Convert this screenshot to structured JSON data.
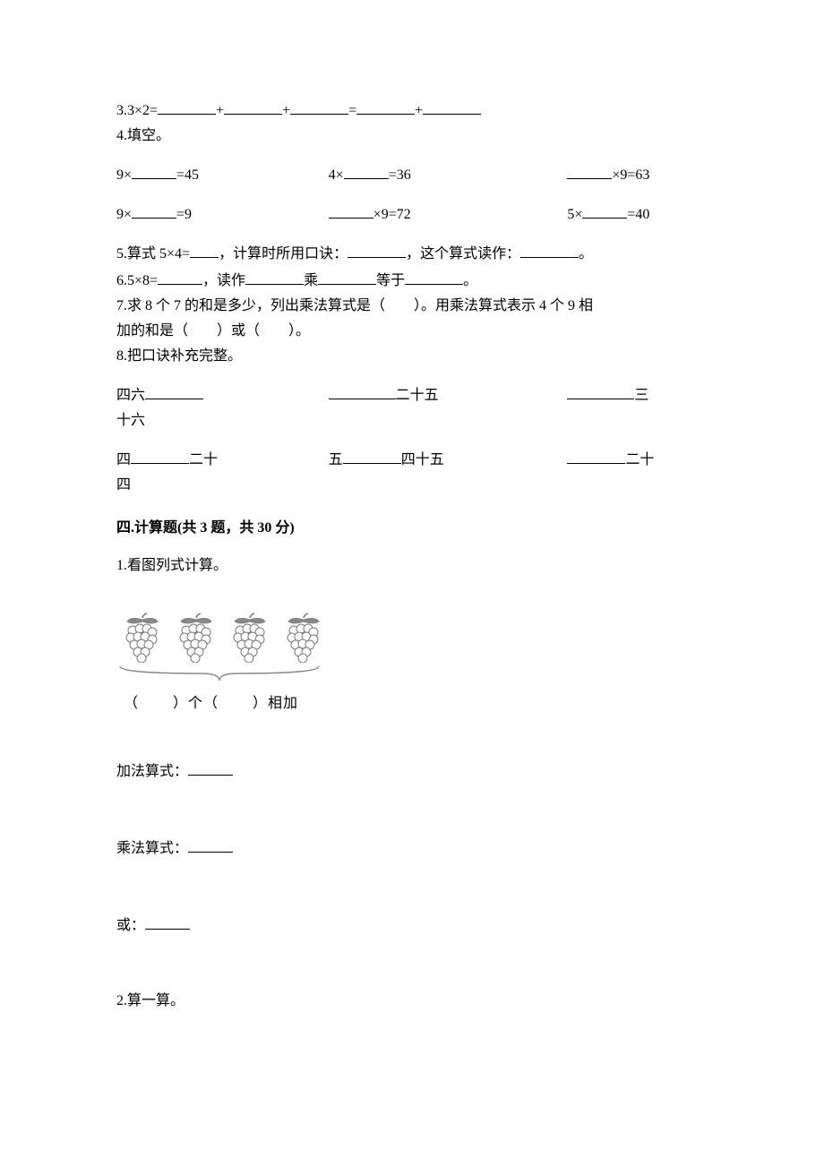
{
  "q3": {
    "text_prefix": "3.3×2=",
    "op_plus": "+",
    "op_eq": "="
  },
  "q4": {
    "title": "4.填空。",
    "r1": {
      "a": "9×",
      "a_suffix": "=45",
      "b": "4×",
      "b_suffix": "=36",
      "c_suffix": "×9=63"
    },
    "r2": {
      "a": "9×",
      "a_suffix": "=9",
      "b_suffix": "×9=72",
      "c": "5×",
      "c_suffix": "=40"
    }
  },
  "q5": {
    "prefix": "5.算式 5×4=",
    "mid1": "，计算时所用口诀：",
    "mid2": "，这个算式读作：",
    "suffix": "。"
  },
  "q6": {
    "prefix": "6.5×8=",
    "mid1": "，读作",
    "mid2": "乘",
    "mid3": "等于",
    "suffix": "。"
  },
  "q7": {
    "line1": "7.求 8 个 7 的和是多少，列出乘法算式是（　　）。用乘法算式表示 4 个 9 相",
    "line2": "加的和是（　　）或（　　）。"
  },
  "q8": {
    "title": "8.把口诀补充完整。",
    "r1": {
      "a_prefix": "四六",
      "b_suffix": "二十五",
      "c_suffix": "三"
    },
    "r1_wrap": "十六",
    "r2": {
      "a_prefix": "四",
      "a_suffix": "二十",
      "b_prefix": "五",
      "b_suffix": "四十五",
      "c_suffix": "二十"
    },
    "r2_wrap": "四"
  },
  "section4": {
    "title": "四.计算题(共 3 题，共 30 分)"
  },
  "s4q1": {
    "title": "1.看图列式计算。",
    "caption_open": "（",
    "caption_mid": "）个（",
    "caption_close": "）相加",
    "addition": "加法算式：",
    "multiplication": "乘法算式：",
    "or": "或："
  },
  "s4q2": {
    "title": "2.算一算。"
  },
  "diagram": {
    "grape_count": 4,
    "grape_color": "#9a9a9a",
    "grape_stroke": "#7a7a7a",
    "leaf_color": "#888888",
    "brace_color": "#888888",
    "brace_width": 230
  }
}
